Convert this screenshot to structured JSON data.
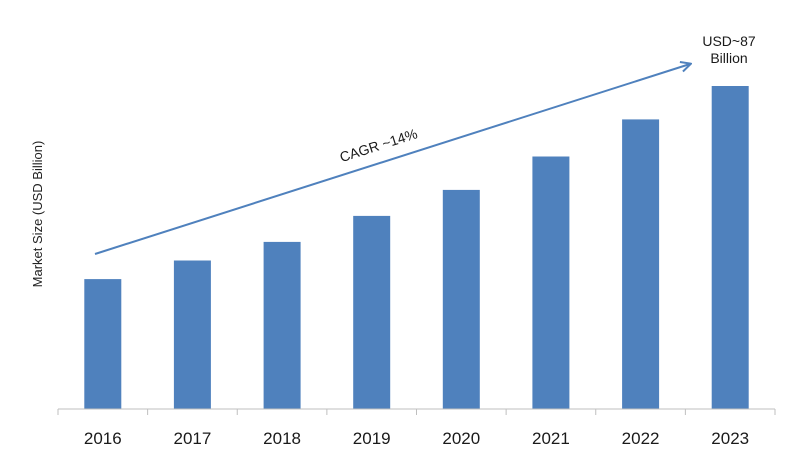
{
  "chart_data": {
    "type": "bar",
    "title": "",
    "xlabel": "",
    "ylabel": "Market Size (USD Billion)",
    "categories": [
      "2016",
      "2017",
      "2018",
      "2019",
      "2020",
      "2021",
      "2022",
      "2023"
    ],
    "values": [
      35,
      40,
      45,
      52,
      59,
      68,
      78,
      87
    ],
    "ylim": [
      0,
      94
    ],
    "grid": false,
    "legend": "none",
    "annotations": {
      "cagr": "CAGR ~14%",
      "end_value_line1": "USD~87",
      "end_value_line2": "Billion"
    },
    "colors": {
      "bar": "#4f81bd",
      "arrow": "#4f81bd",
      "axis": "#bfbfbf"
    }
  }
}
